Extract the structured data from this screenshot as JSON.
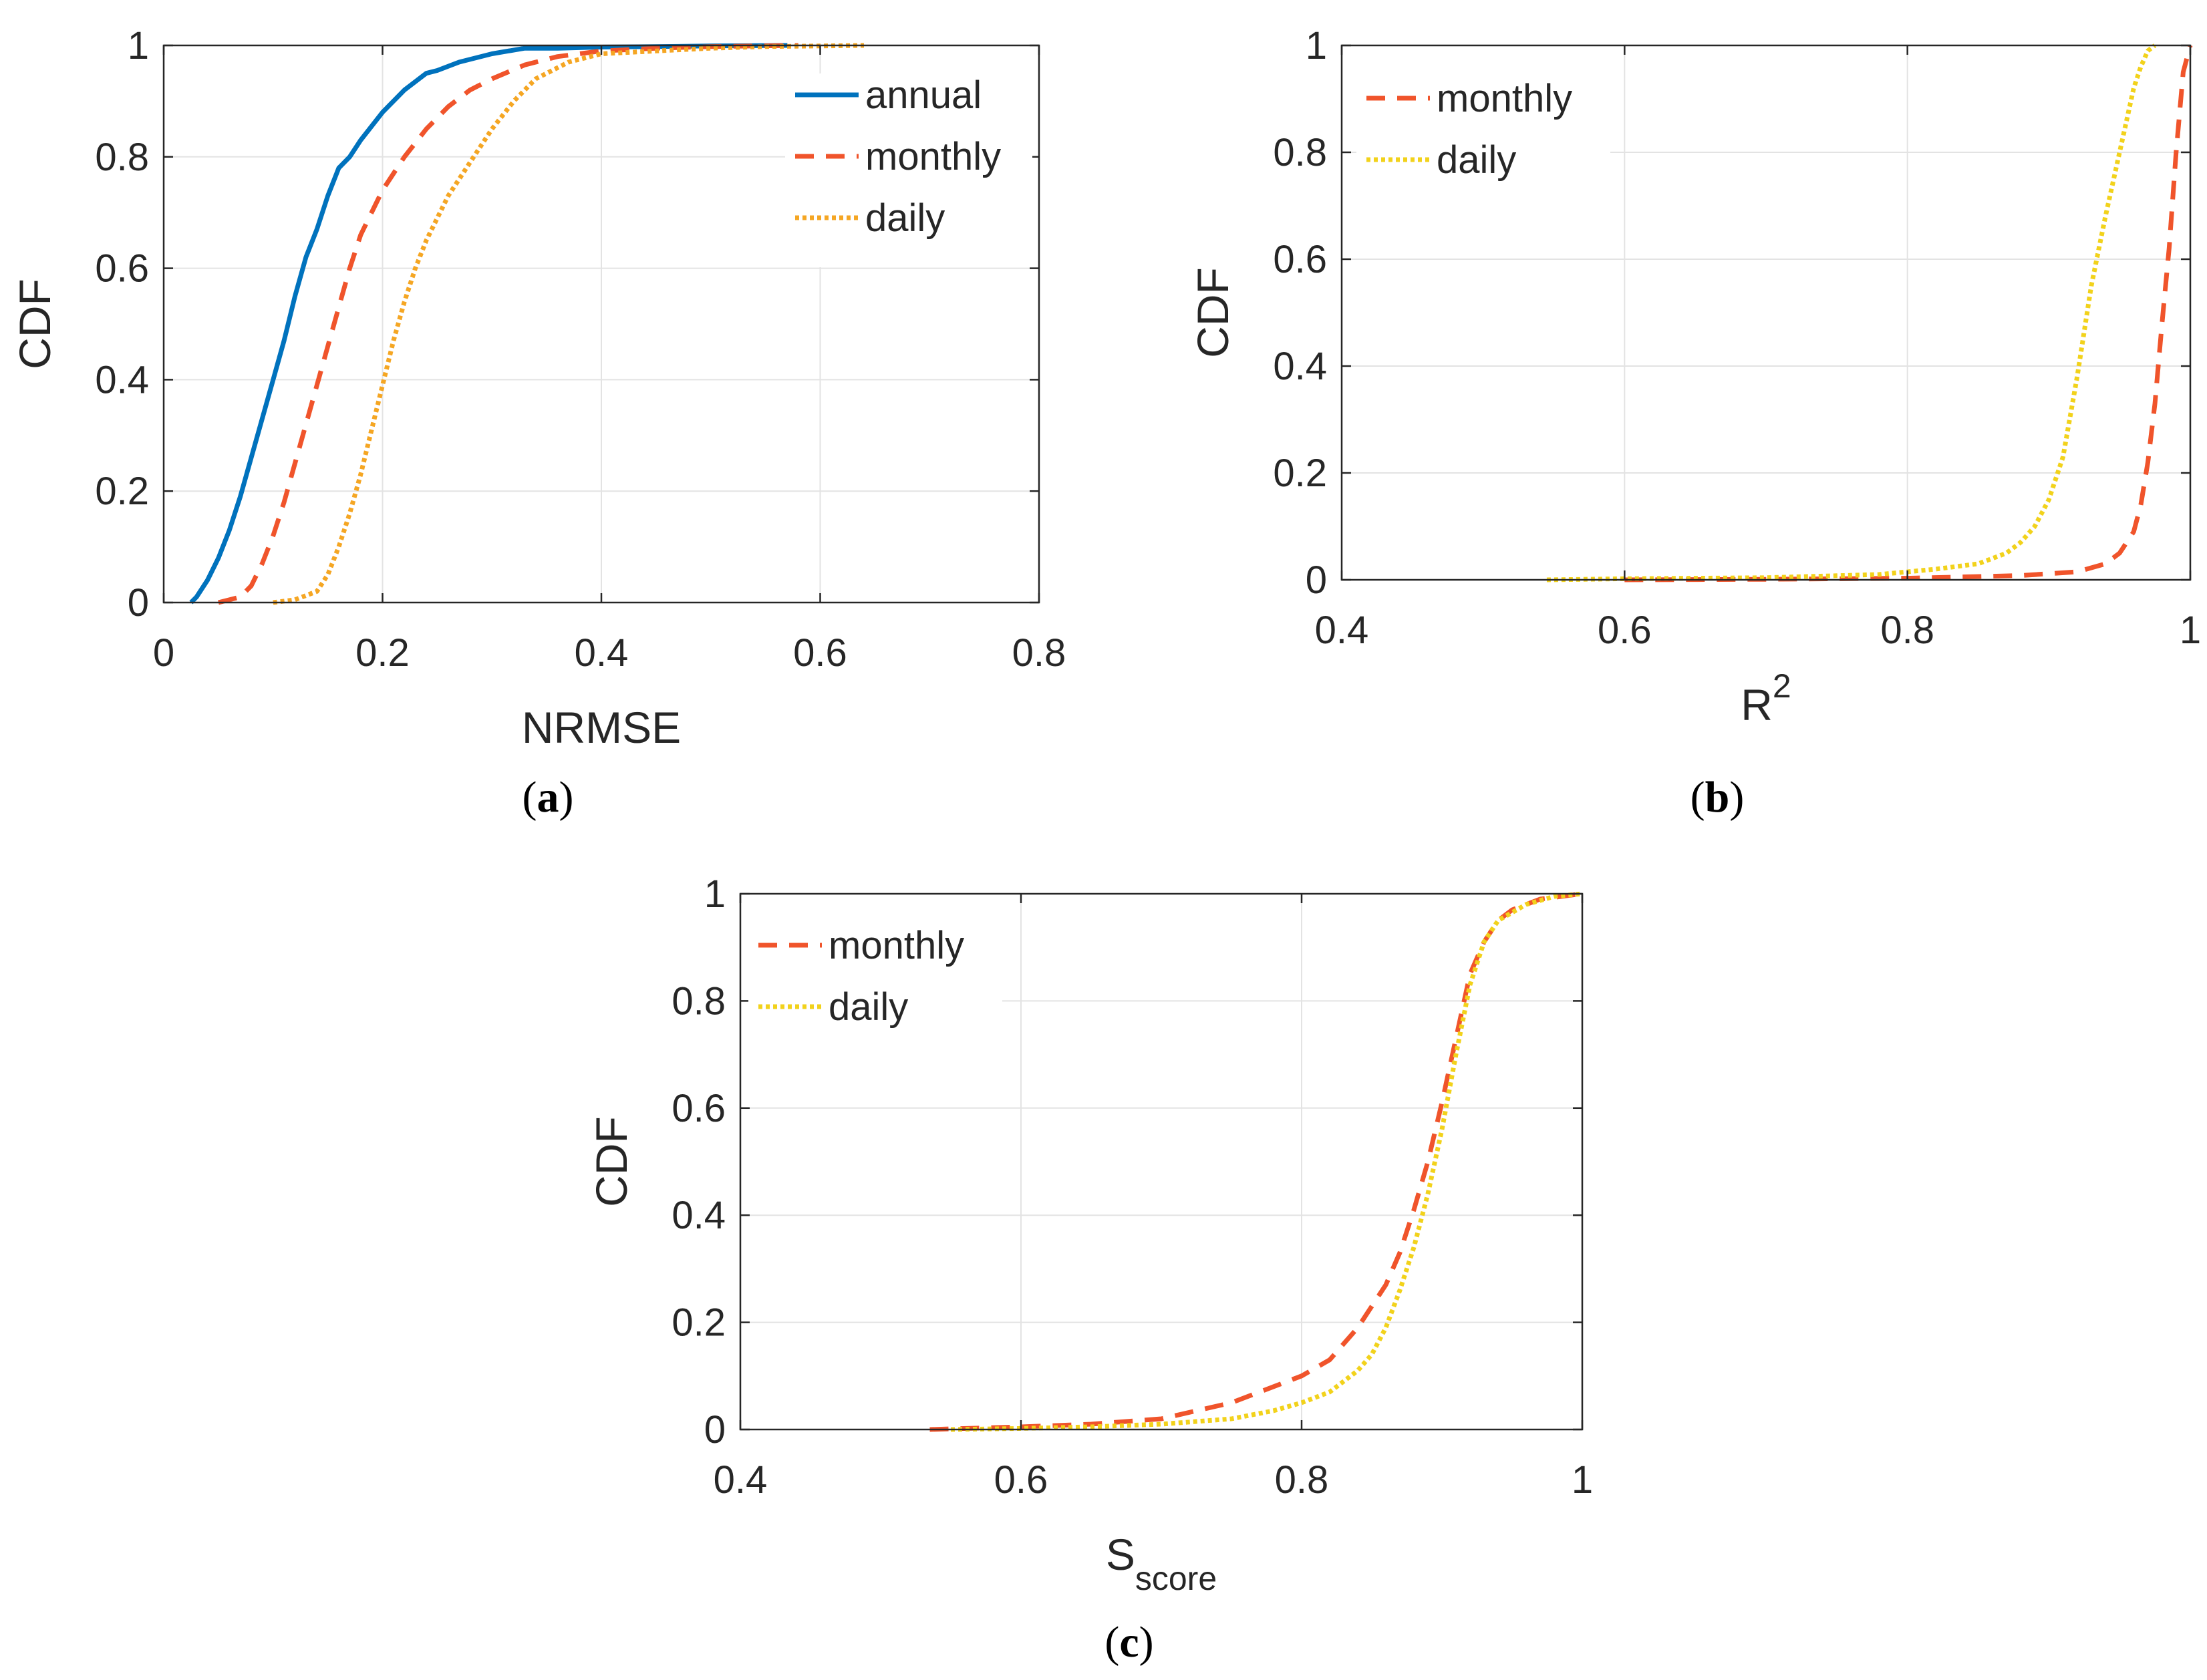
{
  "colors": {
    "annual": "#0072BD",
    "monthly": "#F0542B",
    "daily_a": "#F5A623",
    "daily": "#F2D21B",
    "grid": "#e3e3e3",
    "axis": "#262626"
  },
  "chart_data": [
    {
      "id": "a",
      "type": "line",
      "caption_letter": "a",
      "xlabel": "NRMSE",
      "xlabel_sub": "",
      "xlabel_sup": "",
      "ylabel": "CDF",
      "xlim": [
        0,
        0.8
      ],
      "ylim": [
        0,
        1
      ],
      "xticks": [
        0,
        0.2,
        0.4,
        0.6,
        0.8
      ],
      "xtick_labels": [
        "0",
        "0.2",
        "0.4",
        "0.6",
        "0.8"
      ],
      "yticks": [
        0,
        0.2,
        0.4,
        0.6,
        0.8,
        1
      ],
      "ytick_labels": [
        "0",
        "0.2",
        "0.4",
        "0.6",
        "0.8",
        "1"
      ],
      "grid": true,
      "legend_position": "top-right",
      "series": [
        {
          "name": "annual",
          "style": "solid",
          "color": "#0072BD",
          "x": [
            0.025,
            0.03,
            0.04,
            0.05,
            0.06,
            0.07,
            0.08,
            0.09,
            0.1,
            0.11,
            0.12,
            0.13,
            0.14,
            0.15,
            0.16,
            0.17,
            0.18,
            0.2,
            0.22,
            0.24,
            0.25,
            0.27,
            0.3,
            0.33,
            0.36,
            0.4,
            0.45,
            0.5,
            0.57
          ],
          "y": [
            0,
            0.01,
            0.04,
            0.08,
            0.13,
            0.19,
            0.26,
            0.33,
            0.4,
            0.47,
            0.55,
            0.62,
            0.67,
            0.73,
            0.78,
            0.8,
            0.83,
            0.88,
            0.92,
            0.95,
            0.955,
            0.97,
            0.985,
            0.995,
            0.995,
            0.997,
            0.998,
            0.999,
            1.0
          ]
        },
        {
          "name": "monthly",
          "style": "dashed",
          "color": "#F0542B",
          "x": [
            0.05,
            0.07,
            0.08,
            0.09,
            0.1,
            0.11,
            0.12,
            0.13,
            0.14,
            0.15,
            0.16,
            0.17,
            0.18,
            0.19,
            0.2,
            0.22,
            0.24,
            0.26,
            0.28,
            0.3,
            0.33,
            0.36,
            0.4,
            0.45,
            0.5,
            0.58
          ],
          "y": [
            0,
            0.01,
            0.03,
            0.07,
            0.12,
            0.18,
            0.25,
            0.32,
            0.39,
            0.46,
            0.53,
            0.6,
            0.66,
            0.7,
            0.74,
            0.8,
            0.85,
            0.89,
            0.92,
            0.94,
            0.965,
            0.98,
            0.99,
            0.995,
            0.998,
            1.0
          ]
        },
        {
          "name": "daily",
          "style": "dotted",
          "color": "#F5A623",
          "x": [
            0.1,
            0.12,
            0.14,
            0.15,
            0.16,
            0.17,
            0.18,
            0.19,
            0.2,
            0.21,
            0.22,
            0.23,
            0.24,
            0.25,
            0.26,
            0.28,
            0.3,
            0.32,
            0.34,
            0.37,
            0.4,
            0.45,
            0.5,
            0.55,
            0.64
          ],
          "y": [
            0,
            0.005,
            0.02,
            0.05,
            0.1,
            0.16,
            0.23,
            0.31,
            0.39,
            0.47,
            0.54,
            0.6,
            0.65,
            0.69,
            0.73,
            0.79,
            0.85,
            0.9,
            0.94,
            0.97,
            0.985,
            0.99,
            0.995,
            0.998,
            1.0
          ]
        }
      ]
    },
    {
      "id": "b",
      "type": "line",
      "caption_letter": "b",
      "xlabel": "R",
      "xlabel_sub": "",
      "xlabel_sup": "2",
      "ylabel": "CDF",
      "xlim": [
        0.4,
        1
      ],
      "ylim": [
        0,
        1
      ],
      "xticks": [
        0.4,
        0.6,
        0.8,
        1
      ],
      "xtick_labels": [
        "0.4",
        "0.6",
        "0.8",
        "1"
      ],
      "yticks": [
        0,
        0.2,
        0.4,
        0.6,
        0.8,
        1
      ],
      "ytick_labels": [
        "0",
        "0.2",
        "0.4",
        "0.6",
        "0.8",
        "1"
      ],
      "grid": true,
      "legend_position": "top-left",
      "series": [
        {
          "name": "monthly",
          "style": "dashed",
          "color": "#F0542B",
          "x": [
            0.6,
            0.7,
            0.8,
            0.88,
            0.92,
            0.94,
            0.95,
            0.96,
            0.965,
            0.97,
            0.975,
            0.98,
            0.985,
            0.99,
            0.995,
            1.0
          ],
          "y": [
            0,
            0.001,
            0.003,
            0.008,
            0.015,
            0.03,
            0.05,
            0.09,
            0.14,
            0.22,
            0.33,
            0.48,
            0.62,
            0.8,
            0.95,
            1.0
          ]
        },
        {
          "name": "daily",
          "style": "dotted",
          "color": "#F2D21B",
          "x": [
            0.545,
            0.6,
            0.7,
            0.78,
            0.82,
            0.85,
            0.87,
            0.88,
            0.89,
            0.9,
            0.91,
            0.92,
            0.93,
            0.94,
            0.95,
            0.96,
            0.965,
            0.97,
            0.975
          ],
          "y": [
            0,
            0.002,
            0.004,
            0.01,
            0.02,
            0.03,
            0.05,
            0.07,
            0.1,
            0.15,
            0.23,
            0.38,
            0.55,
            0.68,
            0.8,
            0.92,
            0.96,
            0.99,
            1.0
          ]
        }
      ]
    },
    {
      "id": "c",
      "type": "line",
      "caption_letter": "c",
      "xlabel": "S",
      "xlabel_sub": "score",
      "xlabel_sup": "",
      "ylabel": "CDF",
      "xlim": [
        0.4,
        1
      ],
      "ylim": [
        0,
        1
      ],
      "xticks": [
        0.4,
        0.6,
        0.8,
        1
      ],
      "xtick_labels": [
        "0.4",
        "0.6",
        "0.8",
        "1"
      ],
      "yticks": [
        0,
        0.2,
        0.4,
        0.6,
        0.8,
        1
      ],
      "ytick_labels": [
        "0",
        "0.2",
        "0.4",
        "0.6",
        "0.8",
        "1"
      ],
      "grid": true,
      "legend_position": "top-left",
      "series": [
        {
          "name": "monthly",
          "style": "dashed",
          "color": "#F0542B",
          "x": [
            0.535,
            0.6,
            0.65,
            0.7,
            0.75,
            0.8,
            0.82,
            0.84,
            0.86,
            0.87,
            0.88,
            0.89,
            0.9,
            0.91,
            0.92,
            0.93,
            0.94,
            0.95,
            0.97,
            1.0
          ],
          "y": [
            0,
            0.005,
            0.01,
            0.02,
            0.05,
            0.1,
            0.13,
            0.19,
            0.27,
            0.33,
            0.41,
            0.5,
            0.61,
            0.73,
            0.85,
            0.91,
            0.95,
            0.97,
            0.99,
            1.0
          ]
        },
        {
          "name": "daily",
          "style": "dotted",
          "color": "#F2D21B",
          "x": [
            0.55,
            0.6,
            0.65,
            0.7,
            0.75,
            0.78,
            0.8,
            0.82,
            0.84,
            0.85,
            0.86,
            0.87,
            0.88,
            0.89,
            0.9,
            0.91,
            0.92,
            0.93,
            0.94,
            0.96,
            0.98,
            1.0
          ],
          "y": [
            0,
            0.002,
            0.005,
            0.01,
            0.02,
            0.035,
            0.05,
            0.07,
            0.11,
            0.14,
            0.19,
            0.26,
            0.34,
            0.44,
            0.56,
            0.7,
            0.83,
            0.91,
            0.95,
            0.98,
            0.995,
            1.0
          ]
        }
      ]
    }
  ]
}
